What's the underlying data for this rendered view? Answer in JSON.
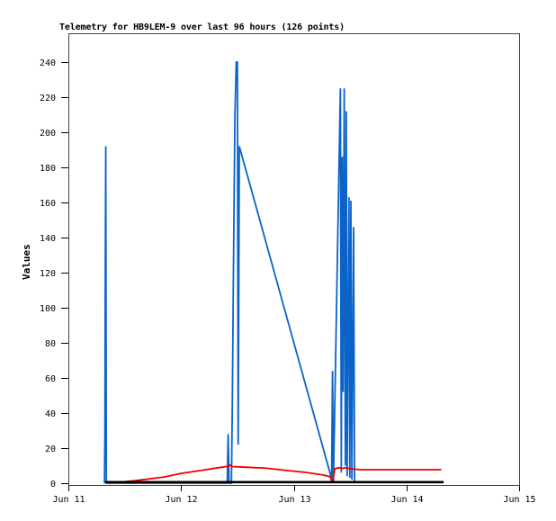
{
  "chart_data": {
    "type": "line",
    "title": "Telemetry for HB9LEM-9 over last 96 hours (126 points)",
    "ylabel": "Values",
    "xlabel": "",
    "x_unit": "days_since_Jun_11_00:00",
    "point_count_label": "126 points",
    "station": "HB9LEM-9",
    "timespan_hours": 96,
    "ylim": [
      0,
      256.4
    ],
    "xlim_days": [
      0,
      4
    ],
    "grid": false,
    "legend": "none",
    "y_ticks": [
      0,
      20,
      40,
      60,
      80,
      100,
      120,
      140,
      160,
      180,
      200,
      220,
      240
    ],
    "x_ticks": [
      {
        "day": 0,
        "label": "Jun 11"
      },
      {
        "day": 1,
        "label": "Jun 12"
      },
      {
        "day": 2,
        "label": "Jun 13"
      },
      {
        "day": 3,
        "label": "Jun 14"
      },
      {
        "day": 4,
        "label": "Jun 15"
      }
    ],
    "colors": {
      "background": "#ffffff",
      "axis": "#404040",
      "tick": "#000000",
      "text": "#000000",
      "series_blue": "#0b63c8",
      "series_red": "#ee0000",
      "series_black": "#000000"
    },
    "series": [
      {
        "name": "channel-blue",
        "color": "#0b63c8",
        "stroke_width": 1.8,
        "points": [
          [
            0.32,
            0
          ],
          [
            0.324,
            25
          ],
          [
            0.328,
            128
          ],
          [
            0.332,
            192
          ],
          [
            0.337,
            0
          ],
          [
            1.41,
            0
          ],
          [
            1.418,
            28
          ],
          [
            1.426,
            0
          ],
          [
            1.447,
            0
          ],
          [
            1.455,
            45
          ],
          [
            1.462,
            100
          ],
          [
            1.47,
            157
          ],
          [
            1.478,
            210
          ],
          [
            1.49,
            240
          ],
          [
            1.5,
            240
          ],
          [
            1.507,
            22
          ],
          [
            1.517,
            192
          ],
          [
            2.33,
            4
          ],
          [
            2.336,
            0
          ],
          [
            2.344,
            64
          ],
          [
            2.352,
            0
          ],
          [
            2.414,
            225
          ],
          [
            2.422,
            6
          ],
          [
            2.43,
            186
          ],
          [
            2.438,
            52
          ],
          [
            2.448,
            225
          ],
          [
            2.458,
            10
          ],
          [
            2.466,
            212
          ],
          [
            2.474,
            4
          ],
          [
            2.49,
            163
          ],
          [
            2.498,
            3
          ],
          [
            2.507,
            161
          ],
          [
            2.516,
            2
          ],
          [
            2.531,
            146
          ],
          [
            2.54,
            0
          ]
        ]
      },
      {
        "name": "channel-red",
        "color": "#ee0000",
        "stroke_width": 1.8,
        "points": [
          [
            0.367,
            0
          ],
          [
            0.6,
            1.5
          ],
          [
            0.85,
            3.5
          ],
          [
            1.0,
            5.6
          ],
          [
            1.2,
            7.5
          ],
          [
            1.35,
            9.0
          ],
          [
            1.42,
            9.7
          ],
          [
            1.435,
            10.3
          ],
          [
            1.45,
            9.5
          ],
          [
            1.55,
            9.2
          ],
          [
            1.75,
            8.6
          ],
          [
            1.95,
            7.2
          ],
          [
            2.1,
            6.2
          ],
          [
            2.25,
            4.8
          ],
          [
            2.32,
            3.8
          ],
          [
            2.345,
            1.0
          ],
          [
            2.365,
            8.3
          ],
          [
            2.4,
            8.8
          ],
          [
            2.43,
            8.4
          ],
          [
            2.46,
            8.8
          ],
          [
            2.5,
            8.3
          ],
          [
            2.54,
            8.0
          ],
          [
            2.6,
            7.7
          ],
          [
            3.31,
            7.7
          ]
        ]
      },
      {
        "name": "channel-black",
        "color": "#000000",
        "stroke_width": 2.6,
        "points": [
          [
            0.327,
            0.6
          ],
          [
            3.33,
            0.6
          ]
        ]
      }
    ]
  }
}
